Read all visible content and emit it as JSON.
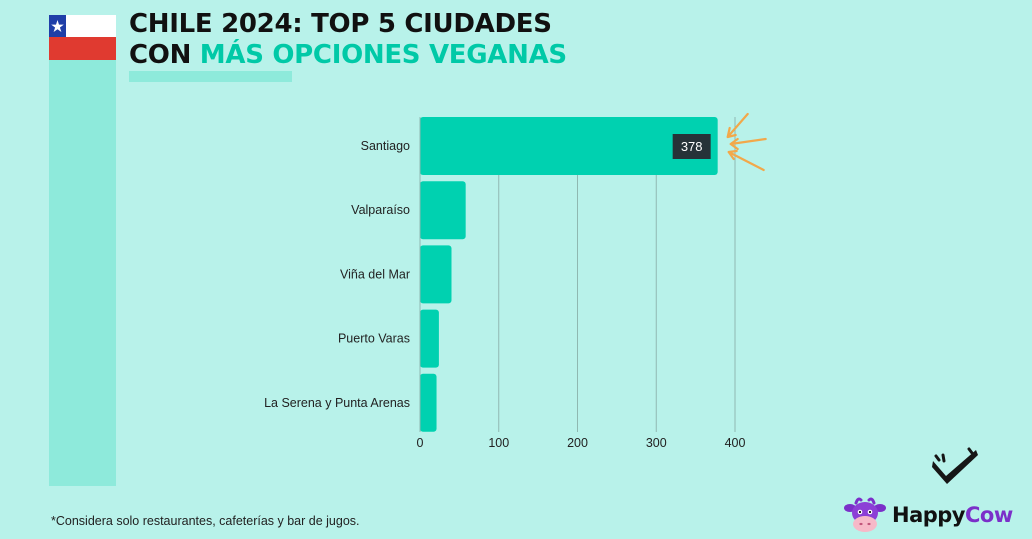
{
  "title": {
    "line1": "CHILE 2024: TOP 5 CIUDADES",
    "line2_prefix": "CON ",
    "line2_accent": "MÁS OPCIONES VEGANAS"
  },
  "chart_data": {
    "type": "bar",
    "orientation": "horizontal",
    "categories": [
      "Santiago",
      "Valparaíso",
      "Viña del Mar",
      "Puerto Varas",
      "La Serena y Punta Arenas"
    ],
    "values": [
      378,
      58,
      40,
      24,
      21
    ],
    "data_labels": [
      {
        "category": "Santiago",
        "value": 378,
        "text": "378"
      }
    ],
    "x_ticks": [
      "0",
      "100",
      "200",
      "300",
      "400"
    ],
    "xlim": [
      0,
      400
    ],
    "grid": true,
    "bar_color": "#00d1b0"
  },
  "footnote": "*Considera solo restaurantes, cafeterías y bar de jugos.",
  "logo": {
    "text_happy": "Happy",
    "text_cow": "Cow",
    "icon": "cow-face-icon"
  },
  "colors": {
    "background": "#b8f2ea",
    "strip": "#8eeadb",
    "accent": "#00c9a7",
    "bar": "#00d1b0",
    "annotation_arrows": "#f2a84a",
    "logo_purple": "#7b2fc9"
  },
  "decorations": [
    "chile-flag-icon",
    "check-mark-icon",
    "arrows-icon"
  ]
}
